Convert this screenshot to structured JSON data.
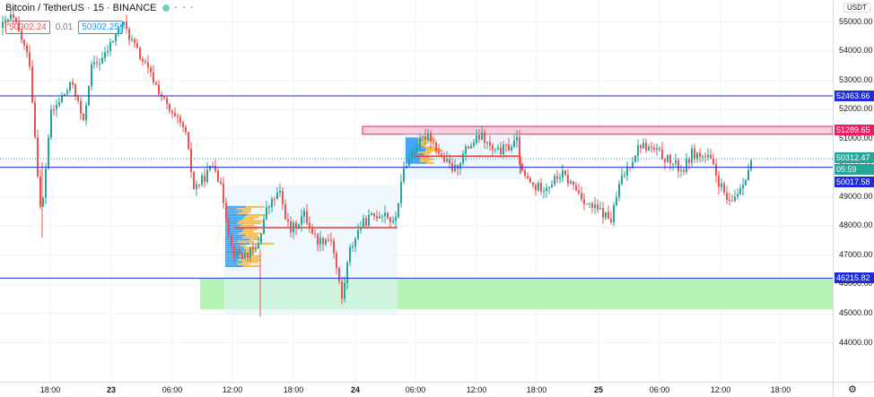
{
  "legend": {
    "symbol": "Bitcoin / TetherUS · 15 · BINANCE",
    "more_icon": "dots-horizontal-icon",
    "sell_price": "50302.24",
    "spread": "0.01",
    "buy_price": "50302.25"
  },
  "price_axis": {
    "currency": "USDT",
    "labels": [
      "55000.00",
      "54000.00",
      "53000.00",
      "52000.00",
      "51000.00",
      "50000.00",
      "49000.00",
      "48000.00",
      "47000.00",
      "46000.00",
      "45000.00",
      "44000.00"
    ],
    "tags": [
      {
        "text": "52463.66",
        "color": "#1e2bd6"
      },
      {
        "text": "51289.65",
        "color": "#e91e63"
      },
      {
        "text": "50312.47",
        "color": "#26a69a"
      },
      {
        "text": "05:59",
        "color": "#26a69a"
      },
      {
        "text": "50017.58",
        "color": "#1e2bd6"
      },
      {
        "text": "46215.82",
        "color": "#1e2bd6"
      }
    ]
  },
  "time_axis": {
    "labels": [
      {
        "text": "18:00",
        "bold": false
      },
      {
        "text": "23",
        "bold": true
      },
      {
        "text": "06:00",
        "bold": false
      },
      {
        "text": "12:00",
        "bold": false
      },
      {
        "text": "18:00",
        "bold": false
      },
      {
        "text": "24",
        "bold": true
      },
      {
        "text": "06:00",
        "bold": false
      },
      {
        "text": "12:00",
        "bold": false
      },
      {
        "text": "18:00",
        "bold": false
      },
      {
        "text": "25",
        "bold": true
      },
      {
        "text": "06:00",
        "bold": false
      },
      {
        "text": "12:00",
        "bold": false
      },
      {
        "text": "18:00",
        "bold": false
      }
    ],
    "settings_icon": "gear-icon"
  },
  "chart_data": {
    "type": "candlestick",
    "ylim": [
      43800,
      55800
    ],
    "up_color": "#26a69a",
    "down_color": "#ef5350",
    "horizontal_lines": [
      52463.66,
      50017.58,
      46215.82
    ],
    "resistance_zone": [
      51150,
      51420
    ],
    "support_zone": [
      45150,
      46215.82
    ],
    "last_price": 50312.47,
    "profile_poc": [
      47950,
      50400
    ]
  }
}
